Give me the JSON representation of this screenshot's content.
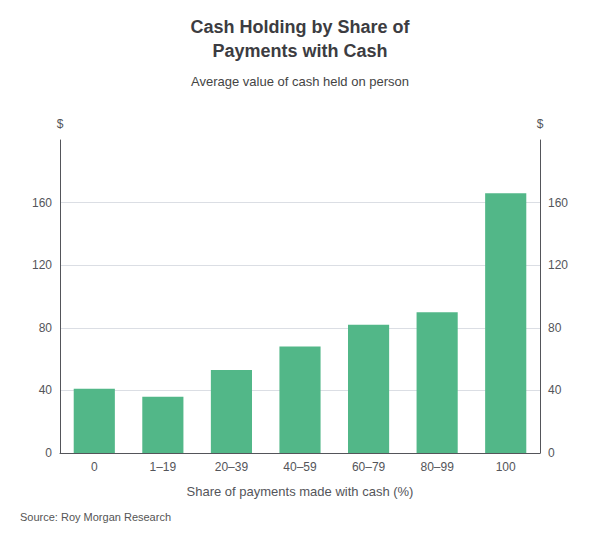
{
  "chart_data": {
    "type": "bar",
    "title": "Cash Holding by Share of\nPayments with Cash",
    "subtitle": "Average value of cash held on person",
    "xlabel": "Share of payments made with cash (%)",
    "ylabel": "$",
    "y2label": "$",
    "source": "Source: Roy Morgan Research",
    "categories": [
      "0",
      "1–19",
      "20–39",
      "40–59",
      "60–79",
      "80–99",
      "100"
    ],
    "values": [
      41,
      36,
      53,
      68,
      82,
      90,
      166
    ],
    "color": "#52b788",
    "ylim": [
      0,
      200
    ],
    "yticks": [
      0,
      40,
      80,
      120,
      160
    ],
    "y2lim": [
      0,
      200
    ],
    "y2ticks": [
      0,
      40,
      80,
      120,
      160
    ],
    "grid": true
  }
}
